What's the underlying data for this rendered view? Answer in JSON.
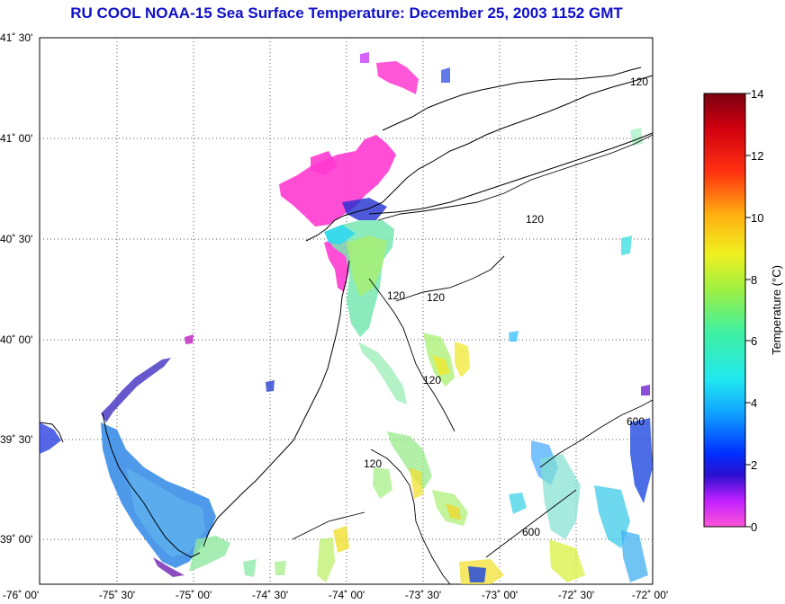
{
  "title": "RU COOL  NOAA-15  Sea Surface Temperature:  December 25, 2003 1152 GMT",
  "map": {
    "lat_labels": [
      "41˚ 30'",
      "41˚ 00'",
      "40˚ 30'",
      "40˚ 00'",
      "39˚ 30'",
      "39˚ 00'"
    ],
    "lon_labels": [
      "-76˚ 00'",
      "-75˚ 30'",
      "-75˚ 00'",
      "-74˚ 30'",
      "-74˚ 00'",
      "-73˚ 30'",
      "-73˚ 00'",
      "-72˚ 30'",
      "-72˚ 00'"
    ],
    "isobath_labels": [
      "120",
      "120",
      "120",
      "120",
      "120",
      "120",
      "600",
      "600"
    ],
    "grid": true
  },
  "colorbar": {
    "label": "Temperature (°C)",
    "ticks": [
      "0",
      "2",
      "4",
      "6",
      "8",
      "10",
      "12",
      "14"
    ],
    "min": 0,
    "max": 14
  }
}
